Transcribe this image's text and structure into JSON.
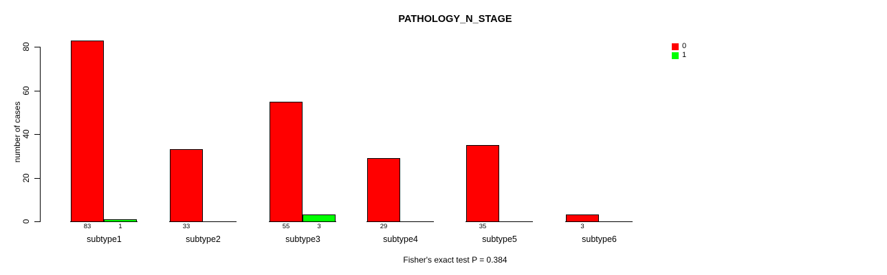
{
  "title": "PATHOLOGY_N_STAGE",
  "y_axis": {
    "label": "number of cases",
    "tick_labels": [
      "0",
      "20",
      "40",
      "60",
      "80"
    ]
  },
  "legend": {
    "items": [
      {
        "label": "0",
        "color": "#ff0000"
      },
      {
        "label": "1",
        "color": "#00ff00"
      }
    ]
  },
  "footer": "Fisher's exact test P = 0.384",
  "chart_data": {
    "type": "bar",
    "title": "PATHOLOGY_N_STAGE",
    "xlabel": "",
    "ylabel": "number of cases",
    "categories": [
      "subtype1",
      "subtype2",
      "subtype3",
      "subtype4",
      "subtype5",
      "subtype6"
    ],
    "series": [
      {
        "name": "0",
        "color": "#ff0000",
        "values": [
          83,
          33,
          55,
          29,
          35,
          3
        ]
      },
      {
        "name": "1",
        "color": "#00ff00",
        "values": [
          1,
          0,
          3,
          0,
          0,
          0
        ]
      }
    ],
    "bar_value_labels": [
      [
        "83",
        "1"
      ],
      [
        "33",
        ""
      ],
      [
        "55",
        "3"
      ],
      [
        "29",
        ""
      ],
      [
        "35",
        ""
      ],
      [
        "3",
        ""
      ]
    ],
    "yticks": [
      0,
      20,
      40,
      60,
      80
    ],
    "ylim": [
      0,
      80
    ],
    "grid": false,
    "legend_position": "top-right",
    "annotation": "Fisher's exact test P = 0.384"
  }
}
